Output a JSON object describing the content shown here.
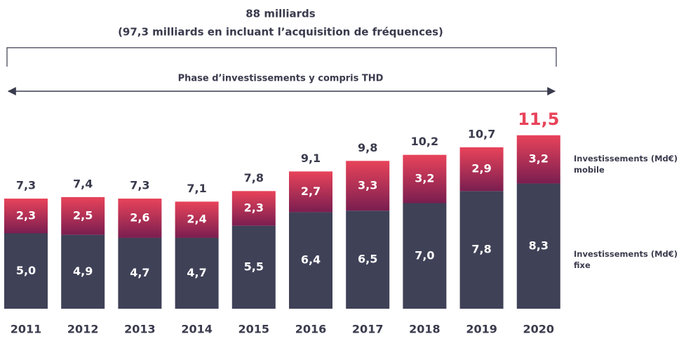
{
  "header": {
    "title": "88 milliards",
    "subtitle": "(97,3 milliards en incluant l’acquisition de fréquences)",
    "phase": "Phase d’investissements y compris THD"
  },
  "chart_data": {
    "type": "stacked_bar",
    "categories": [
      "2011",
      "2012",
      "2013",
      "2014",
      "2015",
      "2016",
      "2017",
      "2018",
      "2019",
      "2020"
    ],
    "series": [
      {
        "name": "Investissements (Md€) fixe",
        "color": "#3f4157",
        "values": [
          5.0,
          4.9,
          4.7,
          4.7,
          5.5,
          6.4,
          6.5,
          7.0,
          7.8,
          8.3
        ],
        "value_labels": [
          "5,0",
          "4,9",
          "4,7",
          "4,7",
          "5,5",
          "6,4",
          "6,5",
          "7,0",
          "7,8",
          "8,3"
        ]
      },
      {
        "name": "Investissements (Md€) mobile",
        "color": "#e8435a",
        "color_end": "#7a1e50",
        "values": [
          2.3,
          2.5,
          2.6,
          2.4,
          2.3,
          2.7,
          3.3,
          3.2,
          2.9,
          3.2
        ],
        "value_labels": [
          "2,3",
          "2,5",
          "2,6",
          "2,4",
          "2,3",
          "2,7",
          "3,3",
          "3,2",
          "2,9",
          "3,2"
        ]
      }
    ],
    "totals": [
      7.3,
      7.4,
      7.3,
      7.1,
      7.8,
      9.1,
      9.8,
      10.2,
      10.7,
      11.5
    ],
    "total_labels": [
      "7,3",
      "7,4",
      "7,3",
      "7,1",
      "7,8",
      "9,1",
      "9,8",
      "10,2",
      "10,7",
      "11,5"
    ],
    "total_label_colors": [
      "#3a3b4d",
      "#3a3b4d",
      "#3a3b4d",
      "#3a3b4d",
      "#3a3b4d",
      "#3a3b4d",
      "#3a3b4d",
      "#3a3b4d",
      "#3a3b4d",
      "#e8435a"
    ],
    "ylim": [
      0,
      12
    ]
  }
}
